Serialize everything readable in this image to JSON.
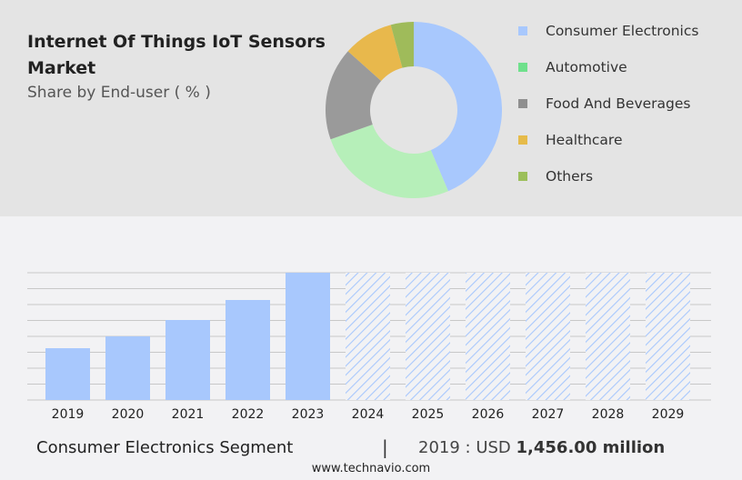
{
  "header": {
    "title": "Internet Of Things IoT Sensors Market",
    "subtitle": "Share by End-user ( % )"
  },
  "chart_data": [
    {
      "type": "pie",
      "donut": true,
      "categories": [
        "Consumer Electronics",
        "Automotive",
        "Food And Beverages",
        "Healthcare",
        "Others"
      ],
      "values": [
        43.6,
        26,
        17,
        9.2,
        4.2
      ],
      "colors": [
        "#a8c8fd",
        "#b6efb9",
        "#9a9a9a",
        "#e8b84c",
        "#9fbb5a"
      ],
      "legend_colors": [
        "#a8c8fd",
        "#6fe08c",
        "#8f8f8f",
        "#e6bb4a",
        "#9cbf5a"
      ],
      "legend": "right"
    },
    {
      "type": "bar",
      "categories": [
        "2019",
        "2020",
        "2021",
        "2022",
        "2023",
        "2024",
        "2025",
        "2026",
        "2027",
        "2028",
        "2029"
      ],
      "values": [
        1456,
        1788,
        2248,
        2810,
        3576,
        null,
        null,
        null,
        null,
        null,
        null
      ],
      "forecast": [
        false,
        false,
        false,
        false,
        false,
        true,
        true,
        true,
        true,
        true,
        true
      ],
      "ylim": [
        0,
        3576
      ],
      "grid": true,
      "color": "#a8c8fd"
    }
  ],
  "footer": {
    "segment": "Consumer Electronics Segment",
    "separator": "|",
    "year_label": "2019 : USD",
    "value": "1,456.00 million",
    "url": "www.technavio.com"
  }
}
